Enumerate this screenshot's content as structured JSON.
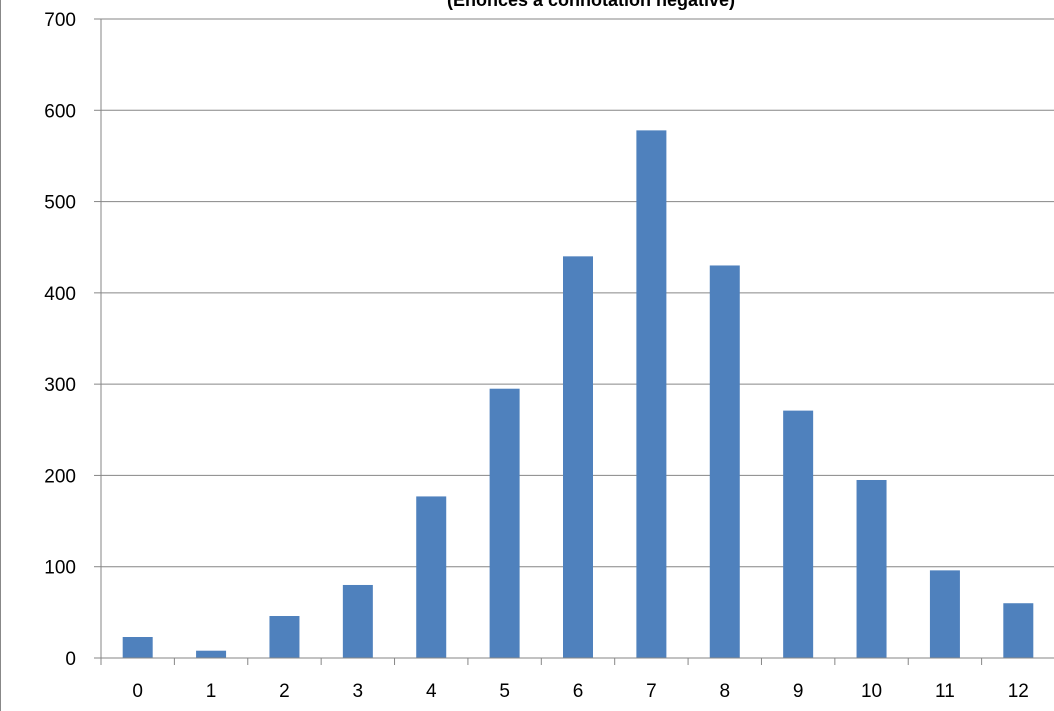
{
  "chart_data": {
    "type": "bar",
    "title": "(Énoncés à connotation négative)",
    "xlabel": "",
    "ylabel": "",
    "categories": [
      "0",
      "1",
      "2",
      "3",
      "4",
      "5",
      "6",
      "7",
      "8",
      "9",
      "10",
      "11",
      "12"
    ],
    "values": [
      23,
      8,
      46,
      80,
      177,
      295,
      440,
      578,
      430,
      271,
      195,
      96,
      60
    ],
    "ylim": [
      0,
      700
    ],
    "yticks": [
      "0",
      "100",
      "200",
      "300",
      "400",
      "500",
      "600",
      "700"
    ],
    "grid": "horizontal",
    "legend": "none",
    "bar_color": "#4F81BD",
    "grid_color": "#868686"
  }
}
